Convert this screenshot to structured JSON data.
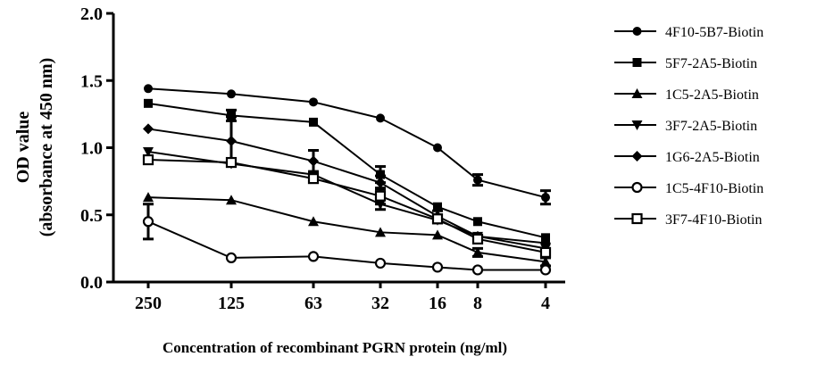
{
  "chart_data": {
    "type": "line",
    "title": "",
    "xlabel": "Concentration of recombinant PGRN protein (ng/ml)",
    "ylabel_line1": "OD value",
    "ylabel_line2": "(absorbance at 450 nm)",
    "ylim": [
      0,
      2.0
    ],
    "yticks": [
      "0.0",
      "0.5",
      "1.0",
      "1.5",
      "2.0"
    ],
    "categories": [
      "250",
      "125",
      "63",
      "32",
      "16",
      "8",
      "4"
    ],
    "grid": false,
    "legend_position": "right",
    "series": [
      {
        "name": "4F10-5B7-Biotin",
        "marker": "circle-filled",
        "values": [
          1.44,
          1.4,
          1.34,
          1.22,
          1.0,
          0.76,
          0.63
        ],
        "errors": [
          0,
          0,
          0,
          0,
          0,
          0.04,
          0.05
        ]
      },
      {
        "name": "5F7-2A5-Biotin",
        "marker": "square-filled",
        "values": [
          1.33,
          1.24,
          1.19,
          0.8,
          0.56,
          0.45,
          0.33
        ],
        "errors": [
          0,
          0.04,
          0,
          0.06,
          0,
          0,
          0
        ]
      },
      {
        "name": "1C5-2A5-Biotin",
        "marker": "triangle-up",
        "values": [
          0.63,
          0.61,
          0.45,
          0.37,
          0.35,
          0.22,
          0.15
        ],
        "errors": [
          0,
          0,
          0,
          0,
          0,
          0.03,
          0.03
        ]
      },
      {
        "name": "3F7-2A5-Biotin",
        "marker": "triangle-down",
        "values": [
          0.97,
          0.88,
          0.8,
          0.58,
          0.46,
          0.34,
          0.25
        ],
        "errors": [
          0,
          0,
          0,
          0.04,
          0,
          0,
          0
        ]
      },
      {
        "name": "1G6-2A5-Biotin",
        "marker": "diamond",
        "values": [
          1.14,
          1.05,
          0.9,
          0.74,
          0.49,
          0.34,
          0.29
        ],
        "errors": [
          0,
          0.18,
          0.08,
          0.05,
          0.04,
          0,
          0
        ]
      },
      {
        "name": "1C5-4F10-Biotin",
        "marker": "circle-open",
        "values": [
          0.45,
          0.18,
          0.19,
          0.14,
          0.11,
          0.09,
          0.09
        ],
        "errors": [
          0.13,
          0,
          0,
          0,
          0,
          0,
          0
        ]
      },
      {
        "name": "3F7-4F10-Biotin",
        "marker": "square-open",
        "values": [
          0.91,
          0.89,
          0.77,
          0.64,
          0.47,
          0.32,
          0.22
        ],
        "errors": [
          0,
          0,
          0,
          0.06,
          0.03,
          0,
          0
        ]
      }
    ]
  }
}
